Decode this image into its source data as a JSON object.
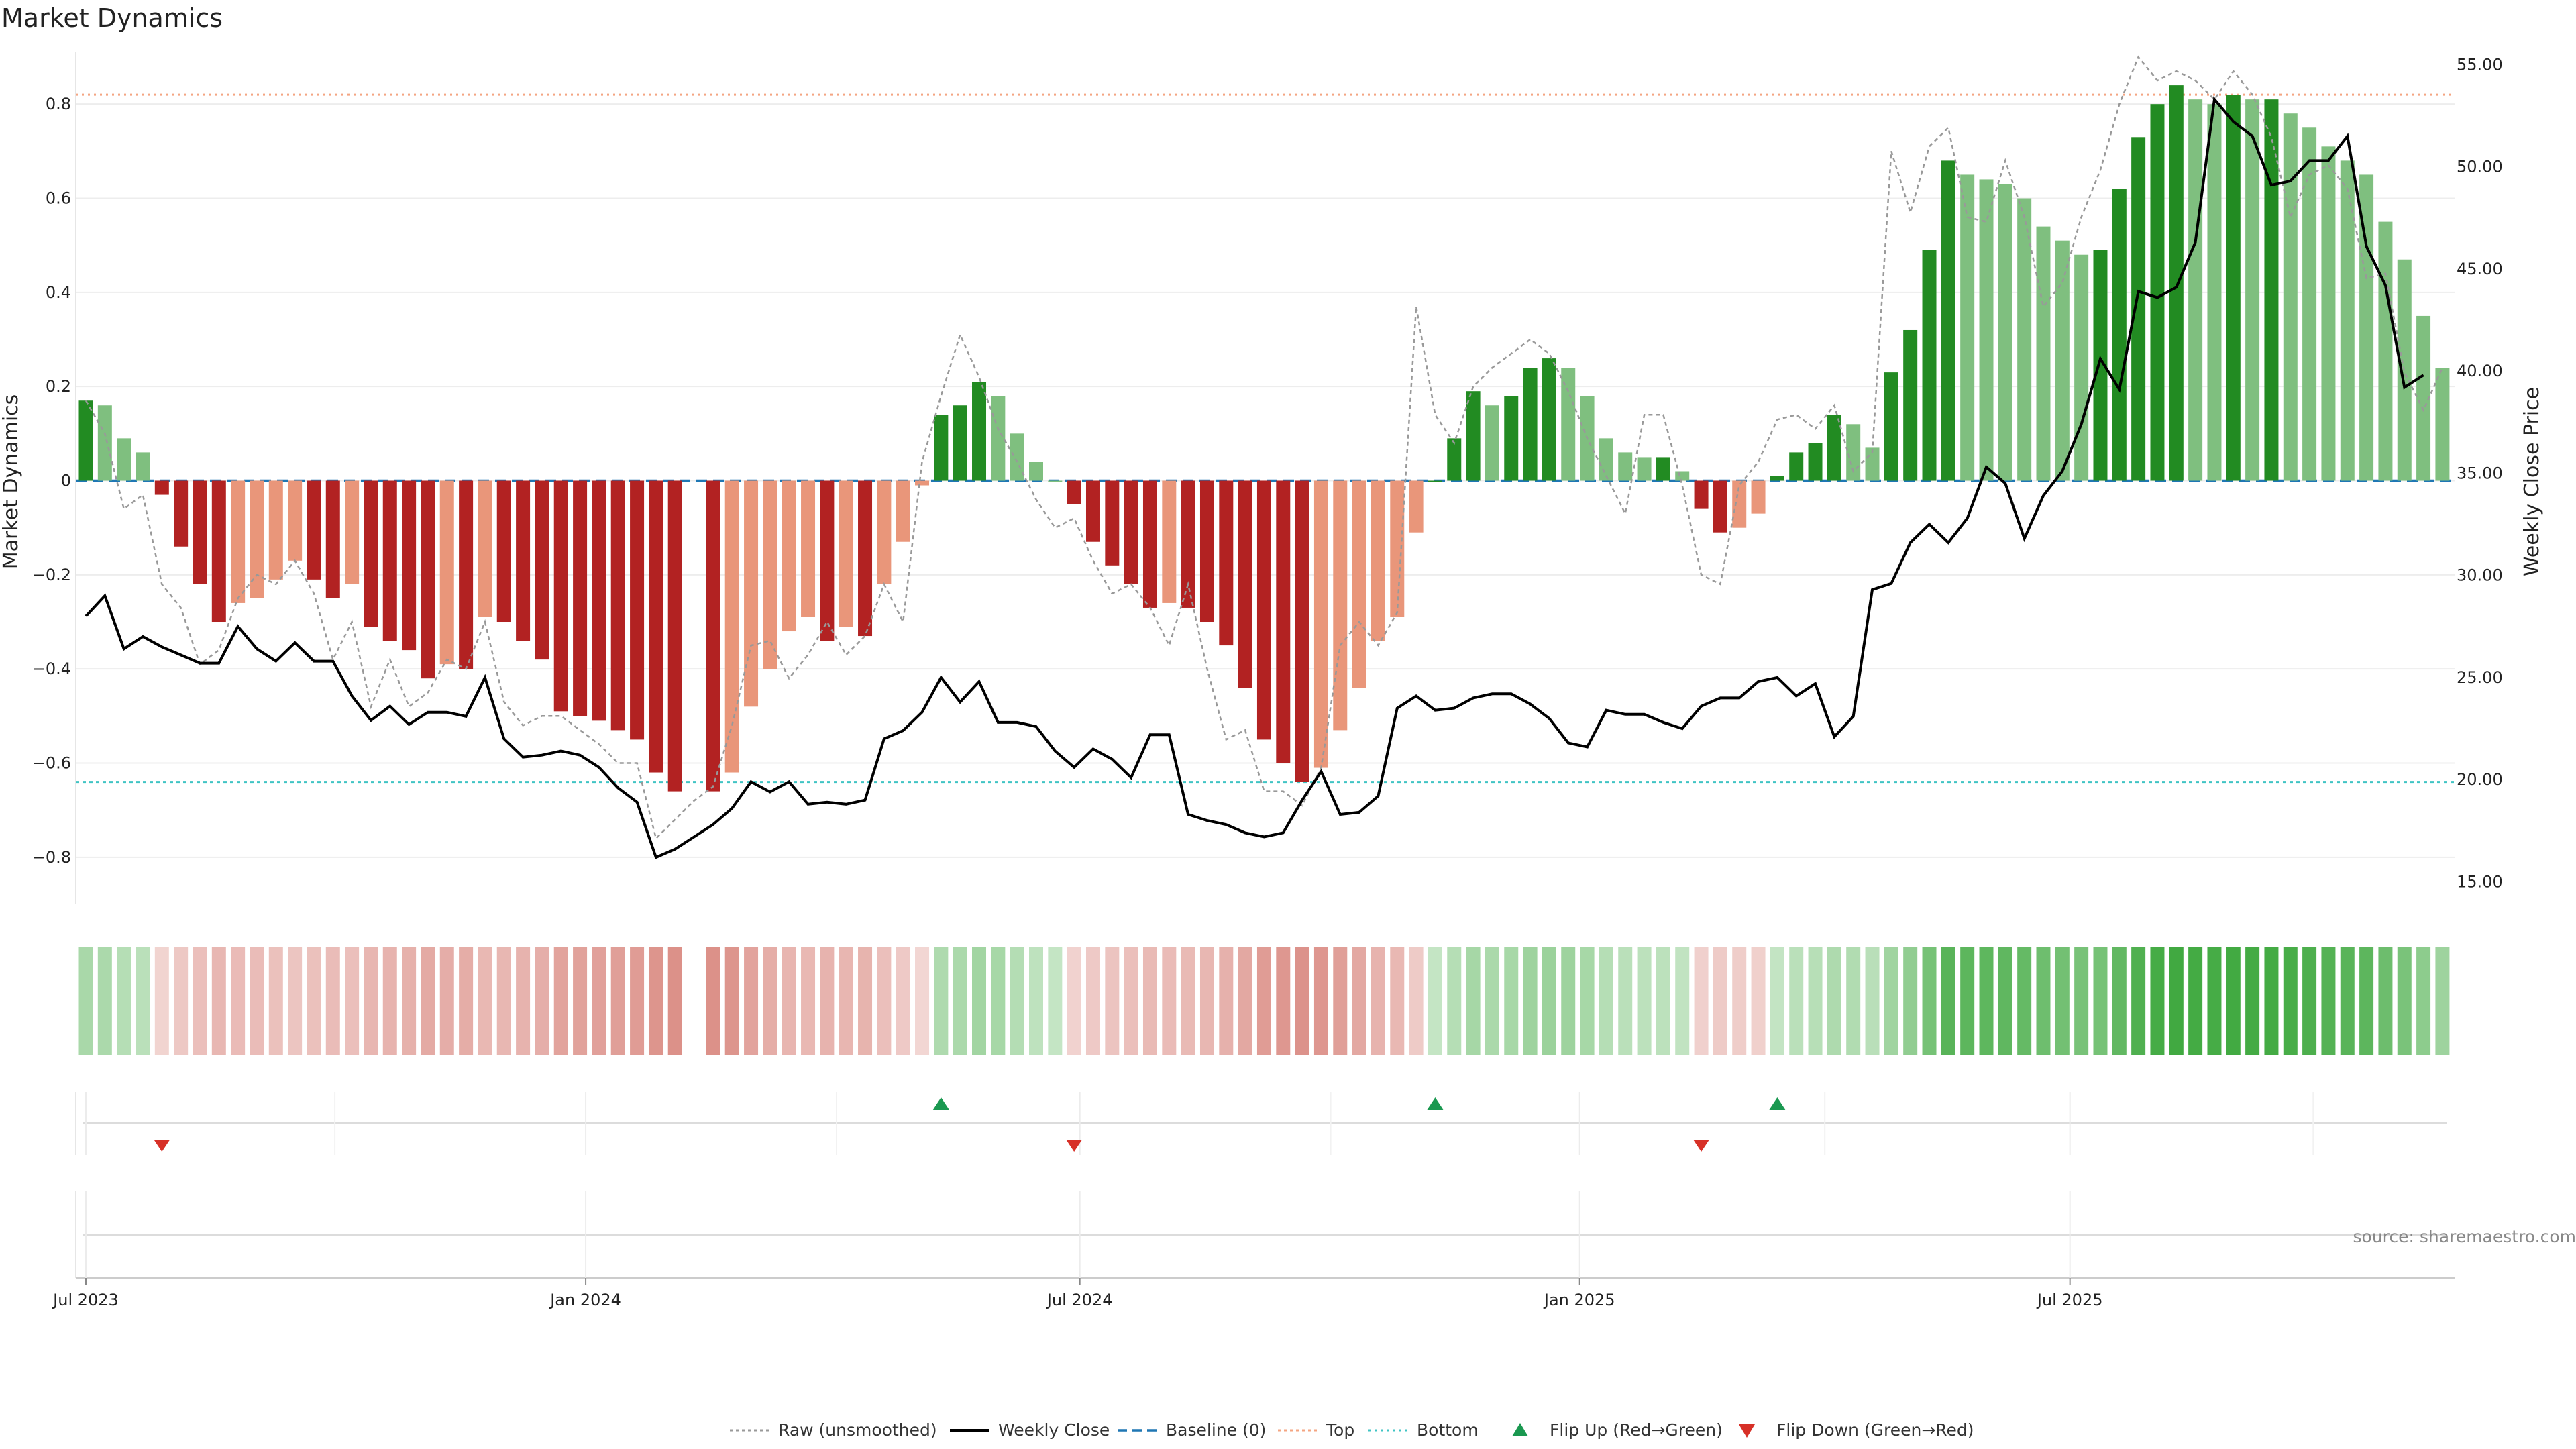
{
  "chart_data": {
    "type": "bar",
    "title": "Market Dynamics",
    "ylabel_left": "Market Dynamics",
    "ylabel_right": "Weekly Close Price",
    "ylim_left": [
      -0.9,
      0.91
    ],
    "ylim_right": [
      13.9,
      55.6
    ],
    "yticks_left": [
      -0.8,
      -0.6,
      -0.4,
      -0.2,
      0,
      0.2,
      0.4,
      0.6,
      0.8
    ],
    "yticks_left_labels": [
      "−0.8",
      "−0.6",
      "−0.4",
      "−0.2",
      "0",
      "0.2",
      "0.4",
      "0.6",
      "0.8"
    ],
    "yticks_right": [
      15,
      20,
      25,
      30,
      35,
      40,
      45,
      50,
      55
    ],
    "yticks_right_labels": [
      "15.00",
      "20.00",
      "25.00",
      "30.00",
      "35.00",
      "40.00",
      "45.00",
      "50.00",
      "55.00"
    ],
    "x_start_week": 0,
    "x_end_week": 125,
    "xticks": [
      {
        "label": "Jul 2023",
        "week": 0
      },
      {
        "label": "Jan 2024",
        "week": 26.3
      },
      {
        "label": "Jul 2024",
        "week": 52.3
      },
      {
        "label": "Jan 2025",
        "week": 78.6
      },
      {
        "label": "Jul 2025",
        "week": 104.4
      }
    ],
    "top_line": 0.82,
    "bottom_line": -0.64,
    "baseline": 0,
    "legend": [
      "Raw (unsmoothed)",
      "Weekly Close",
      "Baseline (0)",
      "Top",
      "Bottom",
      "Flip Up (Red→Green)",
      "Flip Down (Green→Red)"
    ],
    "source": "source: sharemaestro.com",
    "colors": {
      "strong_green": "#228b22",
      "light_green": "#7fbf7f",
      "strong_red": "#b22222",
      "light_red": "#e9967a",
      "close": "#000000",
      "raw": "#999999",
      "baseline": "#1f77b4",
      "top": "#f4a582",
      "bottom": "#40c4c4",
      "flip_up": "#1a9850",
      "flip_down": "#d73027"
    },
    "series": [
      {
        "name": "Market Dynamics",
        "values": [
          0.17,
          0.16,
          0.09,
          0.06,
          -0.03,
          -0.14,
          -0.22,
          -0.3,
          -0.26,
          -0.25,
          -0.21,
          -0.17,
          -0.21,
          -0.25,
          -0.22,
          -0.31,
          -0.34,
          -0.36,
          -0.42,
          -0.39,
          -0.4,
          -0.29,
          -0.3,
          -0.34,
          -0.38,
          -0.49,
          -0.5,
          -0.51,
          -0.53,
          -0.55,
          -0.62,
          -0.66,
          null,
          -0.66,
          -0.62,
          -0.48,
          -0.4,
          -0.32,
          -0.29,
          -0.34,
          -0.31,
          -0.33,
          -0.22,
          -0.13,
          -0.01,
          0.14,
          0.16,
          0.21,
          0.18,
          0.1,
          0.04,
          0,
          -0.05,
          -0.13,
          -0.18,
          -0.22,
          -0.27,
          -0.26,
          -0.27,
          -0.3,
          -0.35,
          -0.44,
          -0.55,
          -0.6,
          -0.64,
          -0.61,
          -0.53,
          -0.44,
          -0.34,
          -0.29,
          -0.11,
          0,
          0.09,
          0.19,
          0.16,
          0.18,
          0.24,
          0.26,
          0.24,
          0.18,
          0.09,
          0.06,
          0.05,
          0.05,
          0.02,
          -0.06,
          -0.11,
          -0.1,
          -0.07,
          0.01,
          0.06,
          0.08,
          0.14,
          0.12,
          0.07,
          0.23,
          0.32,
          0.49,
          0.68,
          0.65,
          0.64,
          0.63,
          0.6,
          0.54,
          0.51,
          0.48,
          0.49,
          0.62,
          0.73,
          0.8,
          0.84,
          0.81,
          0.8,
          0.82,
          0.81,
          0.81,
          0.78,
          0.75,
          0.71,
          0.68,
          0.65,
          0.55,
          0.47,
          0.35,
          0.24
        ]
      },
      {
        "name": "Weekly Close",
        "values": [
          28.0,
          29.0,
          26.4,
          27.0,
          26.5,
          26.1,
          25.7,
          25.7,
          27.5,
          26.4,
          25.8,
          26.7,
          25.8,
          25.8,
          24.1,
          22.9,
          23.6,
          22.7,
          23.3,
          23.3,
          23.1,
          25.0,
          22.0,
          21.1,
          21.2,
          21.4,
          21.2,
          20.6,
          19.6,
          18.9,
          16.2,
          16.6,
          17.2,
          17.8,
          18.6,
          19.9,
          19.4,
          19.9,
          18.8,
          18.9,
          18.8,
          19.0,
          22.0,
          22.4,
          23.3,
          25.0,
          23.8,
          24.8,
          22.8,
          22.8,
          22.6,
          21.4,
          20.6,
          21.5,
          21.0,
          20.1,
          22.2,
          22.2,
          18.3,
          18.0,
          17.8,
          17.4,
          17.2,
          17.4,
          19.0,
          20.4,
          18.3,
          18.4,
          19.2,
          23.5,
          24.1,
          23.4,
          23.5,
          24.0,
          24.2,
          24.2,
          23.7,
          23.0,
          21.8,
          21.6,
          23.4,
          23.2,
          23.2,
          22.8,
          22.5,
          23.6,
          24.0,
          24.0,
          24.8,
          25.0,
          24.1,
          24.7,
          22.1,
          23.1,
          29.3,
          29.6,
          31.6,
          32.5,
          31.6,
          32.8,
          35.3,
          34.5,
          31.8,
          33.9,
          35.1,
          37.4,
          40.6,
          39.1,
          43.9,
          43.6,
          44.1,
          46.3,
          53.3,
          52.2,
          51.5,
          49.1,
          49.3,
          50.3,
          50.3,
          51.5,
          46.1,
          44.2,
          39.2,
          39.8
        ]
      },
      {
        "name": "Raw (unsmoothed)",
        "values": [
          0.17,
          0.1,
          -0.06,
          -0.03,
          -0.22,
          -0.27,
          -0.39,
          -0.36,
          -0.25,
          -0.2,
          -0.22,
          -0.17,
          -0.24,
          -0.38,
          -0.3,
          -0.48,
          -0.38,
          -0.48,
          -0.45,
          -0.38,
          -0.4,
          -0.3,
          -0.47,
          -0.52,
          -0.5,
          -0.5,
          -0.53,
          -0.56,
          -0.6,
          -0.6,
          -0.76,
          -0.72,
          -0.68,
          -0.65,
          -0.52,
          -0.35,
          -0.34,
          -0.42,
          -0.37,
          -0.3,
          -0.37,
          -0.33,
          -0.22,
          -0.3,
          0.04,
          0.18,
          0.31,
          0.22,
          0.11,
          0.04,
          -0.04,
          -0.1,
          -0.08,
          -0.17,
          -0.24,
          -0.22,
          -0.27,
          -0.35,
          -0.22,
          -0.4,
          -0.55,
          -0.53,
          -0.66,
          -0.66,
          -0.69,
          -0.61,
          -0.35,
          -0.3,
          -0.35,
          -0.28,
          0.37,
          0.14,
          0.08,
          0.2,
          0.24,
          0.27,
          0.3,
          0.27,
          0.19,
          0.09,
          0.01,
          -0.07,
          0.14,
          0.14,
          -0.01,
          -0.2,
          -0.22,
          -0.01,
          0.04,
          0.13,
          0.14,
          0.11,
          0.16,
          0.02,
          0.06,
          0.7,
          0.57,
          0.71,
          0.75,
          0.56,
          0.55,
          0.68,
          0.56,
          0.37,
          0.42,
          0.56,
          0.66,
          0.8,
          0.9,
          0.85,
          0.87,
          0.85,
          0.81,
          0.87,
          0.82,
          0.73,
          0.56,
          0.65,
          0.67,
          0.62,
          0.43,
          0.44,
          0.23,
          0.15,
          0.24
        ]
      }
    ],
    "strip_values": [
      0.17,
      0.16,
      0.09,
      0.06,
      -0.03,
      -0.14,
      -0.22,
      -0.3,
      -0.26,
      -0.25,
      -0.21,
      -0.17,
      -0.21,
      -0.25,
      -0.22,
      -0.31,
      -0.34,
      -0.36,
      -0.42,
      -0.39,
      -0.4,
      -0.29,
      -0.3,
      -0.34,
      -0.38,
      -0.49,
      -0.5,
      -0.51,
      -0.53,
      -0.55,
      -0.62,
      -0.66,
      null,
      -0.66,
      -0.62,
      -0.48,
      -0.4,
      -0.32,
      -0.29,
      -0.34,
      -0.31,
      -0.33,
      -0.22,
      -0.13,
      -0.01,
      0.14,
      0.16,
      0.21,
      0.18,
      0.1,
      0.04,
      0,
      -0.05,
      -0.13,
      -0.18,
      -0.22,
      -0.27,
      -0.26,
      -0.27,
      -0.3,
      -0.35,
      -0.44,
      -0.55,
      -0.6,
      -0.64,
      -0.61,
      -0.53,
      -0.44,
      -0.34,
      -0.29,
      -0.11,
      0,
      0.09,
      0.19,
      0.16,
      0.18,
      0.24,
      0.26,
      0.24,
      0.18,
      0.09,
      0.06,
      0.05,
      0.05,
      0.02,
      -0.06,
      -0.11,
      -0.1,
      -0.07,
      0.01,
      0.06,
      0.08,
      0.14,
      0.12,
      0.07,
      0.23,
      0.32,
      0.49,
      0.68,
      0.65,
      0.64,
      0.63,
      0.6,
      0.54,
      0.51,
      0.48,
      0.49,
      0.62,
      0.73,
      0.8,
      0.84,
      0.81,
      0.8,
      0.82,
      0.81,
      0.81,
      0.78,
      0.75,
      0.71,
      0.68,
      0.65,
      0.55,
      0.47,
      0.35,
      0.24
    ],
    "flip_up_weeks": [
      45,
      71,
      89
    ],
    "flip_down_weeks": [
      4,
      52,
      85
    ]
  }
}
